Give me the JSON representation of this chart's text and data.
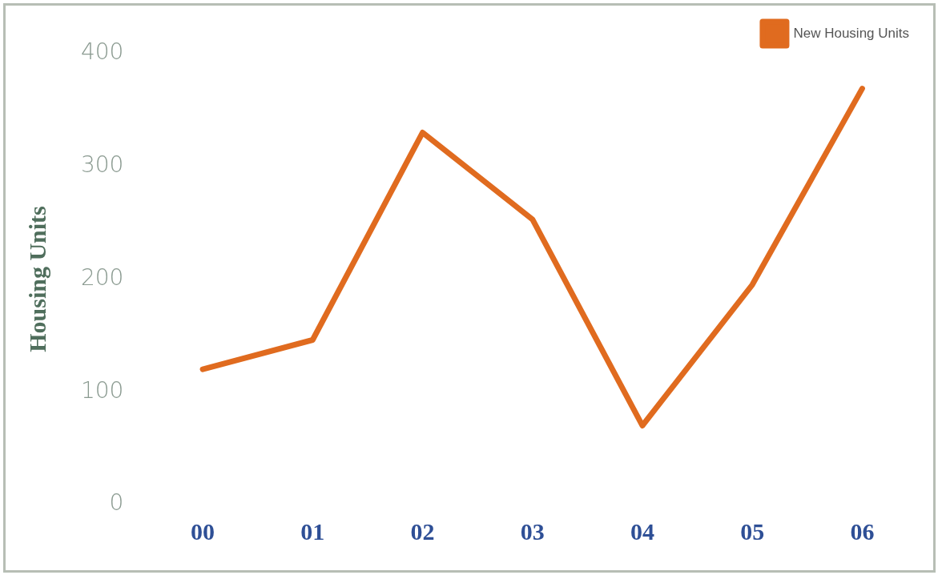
{
  "chart_data": {
    "type": "line",
    "ylabel": "Housing Units",
    "categories": [
      "00",
      "01",
      "02",
      "03",
      "04",
      "05",
      "06"
    ],
    "series": [
      {
        "name": "New Housing Units",
        "color": "#e06b1f",
        "values": [
          120,
          146,
          330,
          253,
          70,
          195,
          369
        ]
      }
    ],
    "ylim": [
      0,
      400
    ],
    "yticks": [
      0,
      100,
      200,
      300,
      400
    ],
    "grid": false,
    "legend": "top right",
    "marker": "none",
    "line_style": "solid"
  }
}
